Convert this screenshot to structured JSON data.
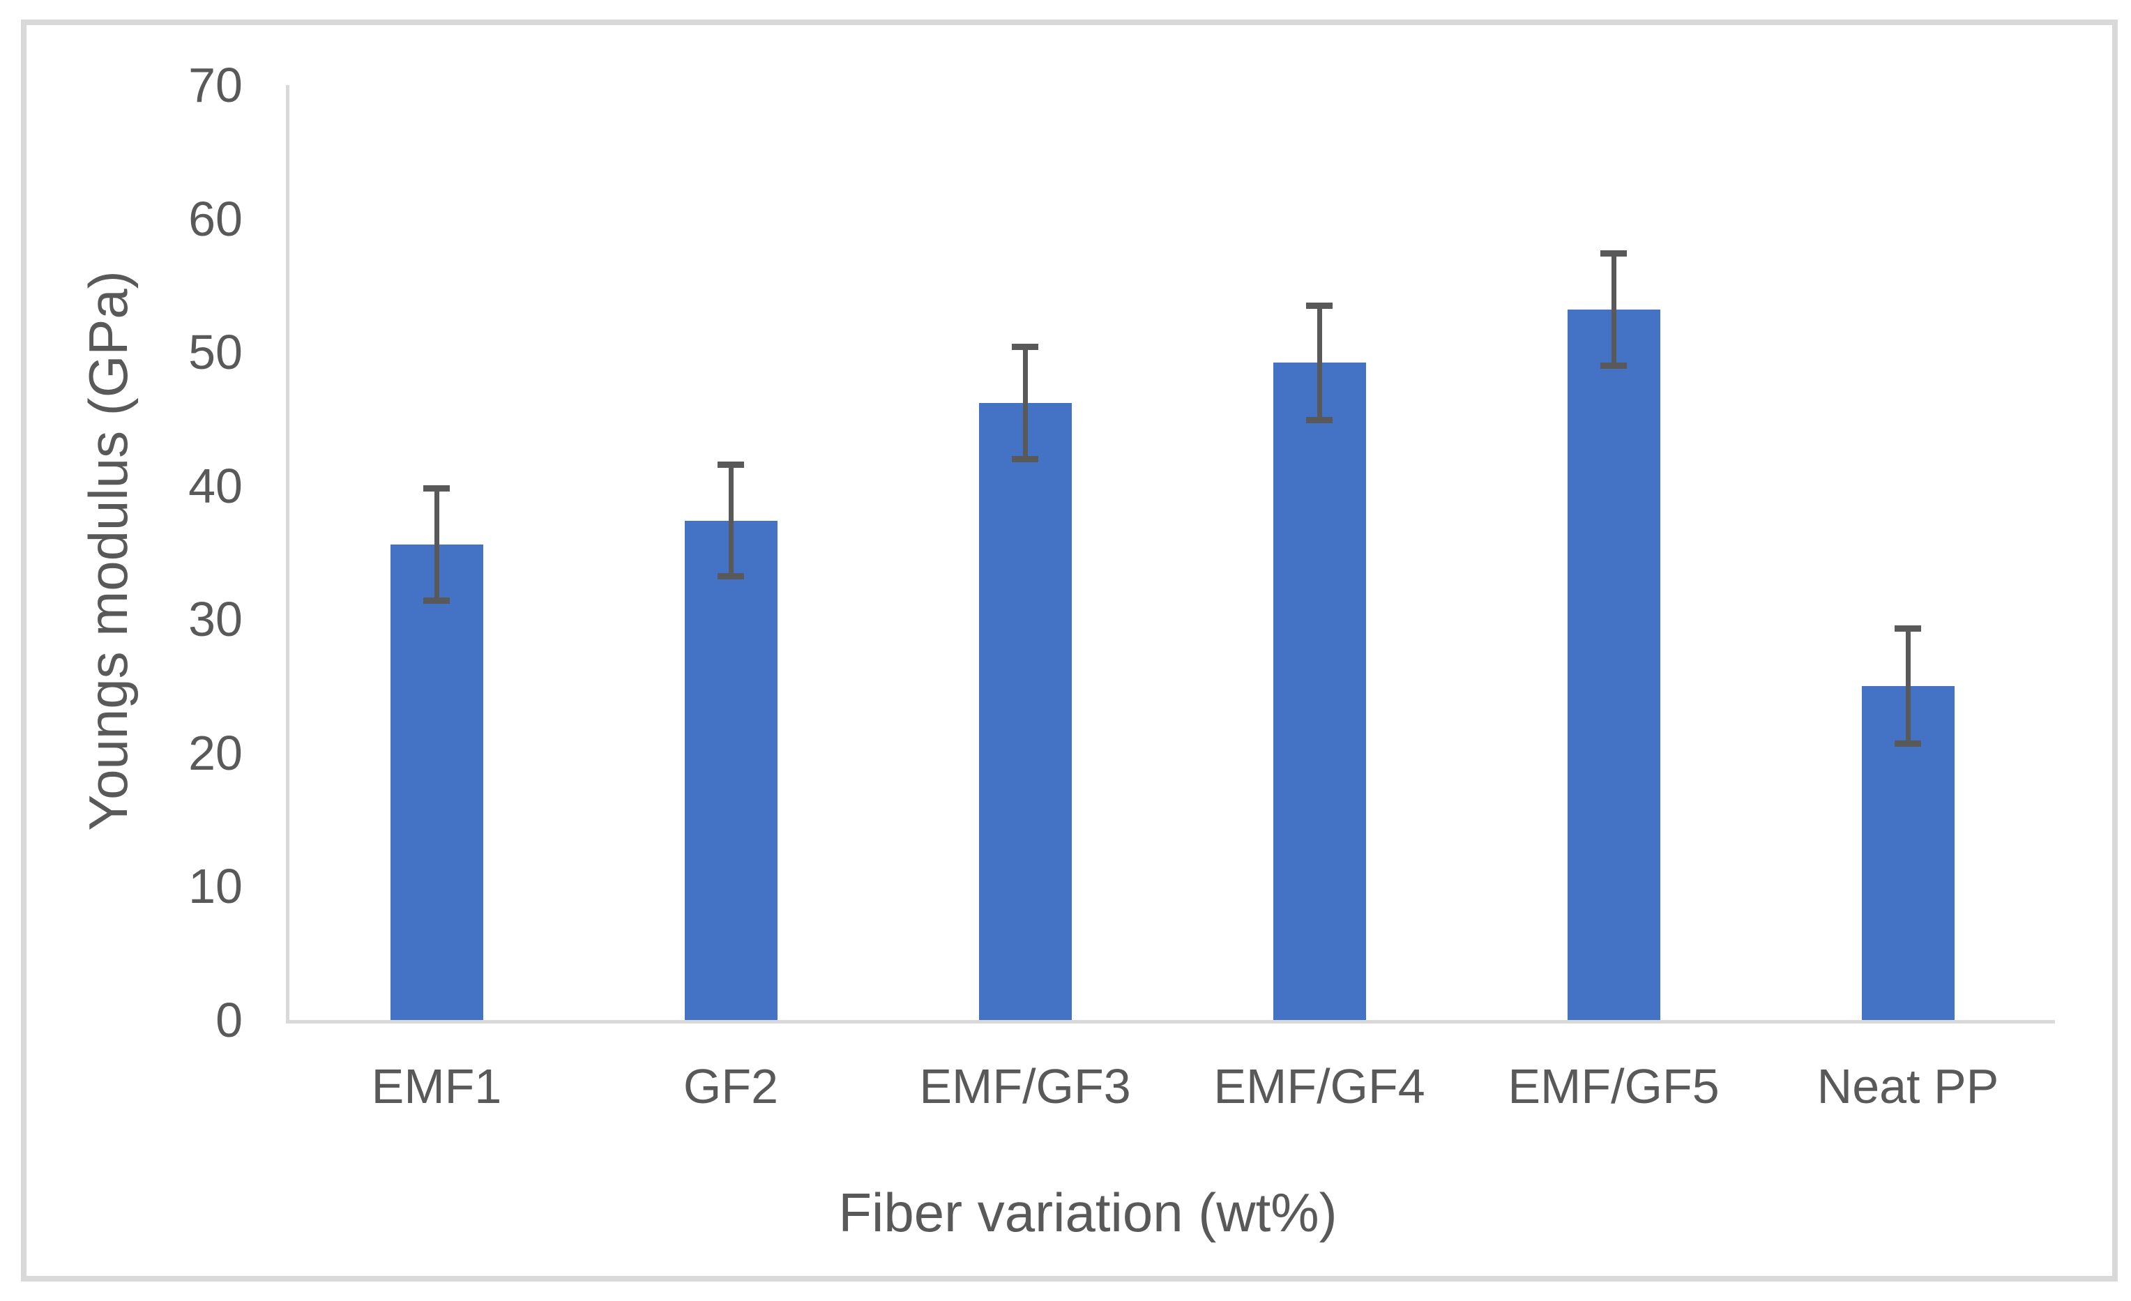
{
  "chart_data": {
    "type": "bar",
    "title": "",
    "categories": [
      "EMF1",
      "GF2",
      "EMF/GF3",
      "EMF/GF4",
      "EMF/GF5",
      "Neat PP"
    ],
    "series": [
      {
        "name": "Youngs modulus",
        "values": [
          35.6,
          37.4,
          46.2,
          49.2,
          53.2,
          25.0
        ],
        "error_bars": [
          4.2,
          4.2,
          4.2,
          4.3,
          4.2,
          4.3
        ]
      }
    ],
    "xlabel": "Fiber variation (wt%)",
    "ylabel": "Youngs modulus (GPa)",
    "ylim": [
      0,
      70
    ],
    "yticks": [
      0,
      10,
      20,
      30,
      40,
      50,
      60,
      70
    ],
    "grid": false,
    "legend": "none",
    "bar_color": "#4472C4",
    "error_bar_color": "#595959",
    "axis_line_color": "#D9D9D9",
    "frame_border_color": "#D9D9D9",
    "text_color": "#595959"
  }
}
